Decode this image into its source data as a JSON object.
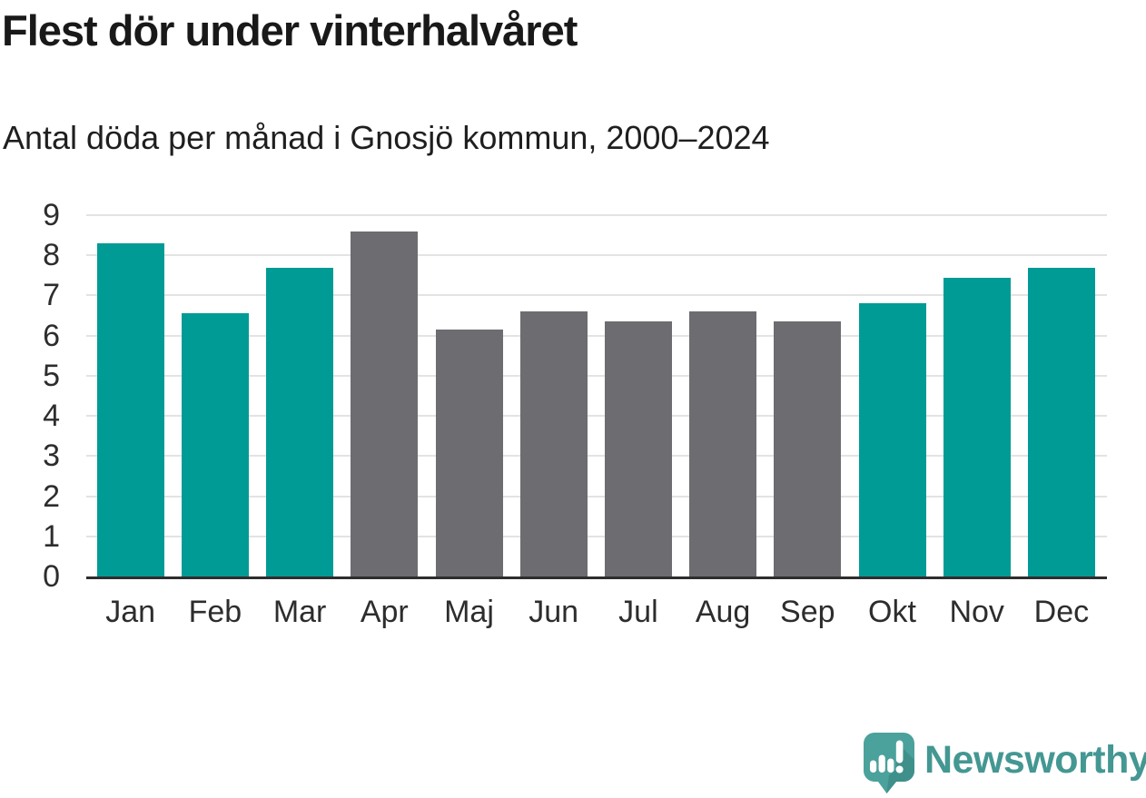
{
  "header": {
    "title": "Flest dör under vinterhalvåret",
    "subtitle": "Antal döda per månad i Gnosjö kommun, 2000–2024"
  },
  "chart_data": {
    "type": "bar",
    "title": "Flest dör under vinterhalvåret",
    "subtitle": "Antal döda per månad i Gnosjö kommun, 2000–2024",
    "categories": [
      "Jan",
      "Feb",
      "Mar",
      "Apr",
      "Maj",
      "Jun",
      "Jul",
      "Aug",
      "Sep",
      "Okt",
      "Nov",
      "Dec"
    ],
    "values": [
      8.3,
      6.55,
      7.7,
      8.6,
      6.15,
      6.6,
      6.35,
      6.6,
      6.35,
      6.8,
      7.45,
      7.7
    ],
    "highlighted": [
      true,
      true,
      true,
      false,
      false,
      false,
      false,
      false,
      false,
      true,
      true,
      true
    ],
    "xlabel": "",
    "ylabel": "",
    "ylim": [
      0,
      9
    ],
    "yticks": [
      0,
      1,
      2,
      3,
      4,
      5,
      6,
      7,
      8,
      9
    ],
    "grid": true,
    "legend": "none",
    "colors": {
      "highlight": "#009B95",
      "default": "#6C6C71",
      "gridline": "#e3e3e3",
      "baseline": "#2e2e2e"
    }
  },
  "footer": {
    "brand": "Newsworthy",
    "logo_icon": "newsworthy-speech-bubble-chart-icon",
    "brand_color": "#449792",
    "logo_fill": "#4BA19B",
    "logo_shadow": "#3F908B"
  }
}
